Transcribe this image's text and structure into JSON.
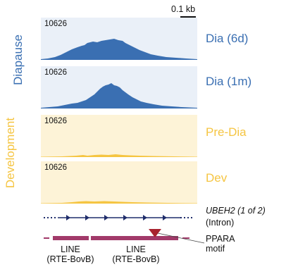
{
  "colors": {
    "diapause": "#3a6fb2",
    "development": "#f5c542",
    "dev_bg": "#fdf3d7",
    "diapause_bg": "#eaf0f8",
    "gene": "#1f2d6b",
    "repeat": "#a23a6a",
    "motif": "#a8232f"
  },
  "scale_bar": {
    "label": "0.1 kb"
  },
  "groups": {
    "diapause": {
      "label": "Diapause"
    },
    "development": {
      "label": "Development"
    }
  },
  "tracks": [
    {
      "label": "Dia (6d)",
      "max": "10626",
      "group": "diapause"
    },
    {
      "label": "Dia (1m)",
      "max": "10626",
      "group": "diapause"
    },
    {
      "label": "Pre-Dia",
      "max": "10626",
      "group": "development"
    },
    {
      "label": "Dev",
      "max": "10626",
      "group": "development"
    }
  ],
  "gene": {
    "name": "UBEH2 (1 of 2)",
    "feature": "(Intron)"
  },
  "motif": {
    "label_line1": "PPARA",
    "label_line2": "motif"
  },
  "repeats": [
    {
      "line1": "LINE",
      "line2": "(RTE-BovB)"
    },
    {
      "line1": "LINE",
      "line2": "(RTE-BovB)"
    }
  ]
}
